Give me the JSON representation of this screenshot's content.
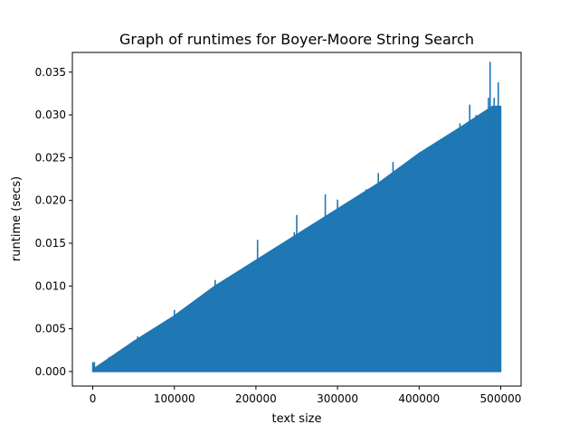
{
  "chart_data": {
    "type": "line",
    "title": "Graph of runtimes for Boyer-Moore String Search",
    "xlabel": "text size",
    "ylabel": "runtime (secs)",
    "xlim": [
      -25000,
      525000
    ],
    "ylim": [
      -0.0017,
      0.0373
    ],
    "x_ticks": [
      0,
      100000,
      200000,
      300000,
      400000,
      500000
    ],
    "x_tick_labels": [
      "0",
      "100000",
      "200000",
      "300000",
      "400000",
      "500000"
    ],
    "y_ticks": [
      0.0,
      0.005,
      0.01,
      0.015,
      0.02,
      0.025,
      0.03,
      0.035
    ],
    "y_tick_labels": [
      "0.000",
      "0.005",
      "0.010",
      "0.015",
      "0.020",
      "0.025",
      "0.030",
      "0.035"
    ],
    "grid": false,
    "series": [
      {
        "color": "#1f77b4",
        "description_points": {
          "x": [
            0,
            1000,
            50000,
            100000,
            150000,
            200000,
            250000,
            300000,
            350000,
            400000,
            450000,
            490000,
            500000
          ],
          "upper_envelope_y": [
            0.0011,
            0.0003,
            0.0035,
            0.0065,
            0.01,
            0.013,
            0.016,
            0.019,
            0.022,
            0.0255,
            0.0285,
            0.031,
            0.031
          ],
          "lower_envelope_y": [
            0,
            0,
            0,
            0,
            0,
            0,
            0,
            0,
            0,
            0,
            0,
            0,
            0
          ]
        },
        "spikes": [
          {
            "x": 2000,
            "y": 0.0011
          },
          {
            "x": 20000,
            "y": 0.0017
          },
          {
            "x": 55000,
            "y": 0.0041
          },
          {
            "x": 100000,
            "y": 0.0072
          },
          {
            "x": 131000,
            "y": 0.0083
          },
          {
            "x": 150000,
            "y": 0.0107
          },
          {
            "x": 175000,
            "y": 0.0113
          },
          {
            "x": 202000,
            "y": 0.0154
          },
          {
            "x": 225000,
            "y": 0.0144
          },
          {
            "x": 247000,
            "y": 0.0163
          },
          {
            "x": 250000,
            "y": 0.0183
          },
          {
            "x": 285000,
            "y": 0.0207
          },
          {
            "x": 300000,
            "y": 0.0201
          },
          {
            "x": 335000,
            "y": 0.0213
          },
          {
            "x": 350000,
            "y": 0.0232
          },
          {
            "x": 368000,
            "y": 0.0245
          },
          {
            "x": 390000,
            "y": 0.0249
          },
          {
            "x": 400000,
            "y": 0.0246
          },
          {
            "x": 432000,
            "y": 0.027
          },
          {
            "x": 440000,
            "y": 0.028
          },
          {
            "x": 450000,
            "y": 0.029
          },
          {
            "x": 462000,
            "y": 0.0312
          },
          {
            "x": 470000,
            "y": 0.03
          },
          {
            "x": 485000,
            "y": 0.032
          },
          {
            "x": 487000,
            "y": 0.0362
          },
          {
            "x": 492000,
            "y": 0.032
          },
          {
            "x": 497000,
            "y": 0.0338
          },
          {
            "x": 499000,
            "y": 0.031
          }
        ]
      }
    ]
  }
}
